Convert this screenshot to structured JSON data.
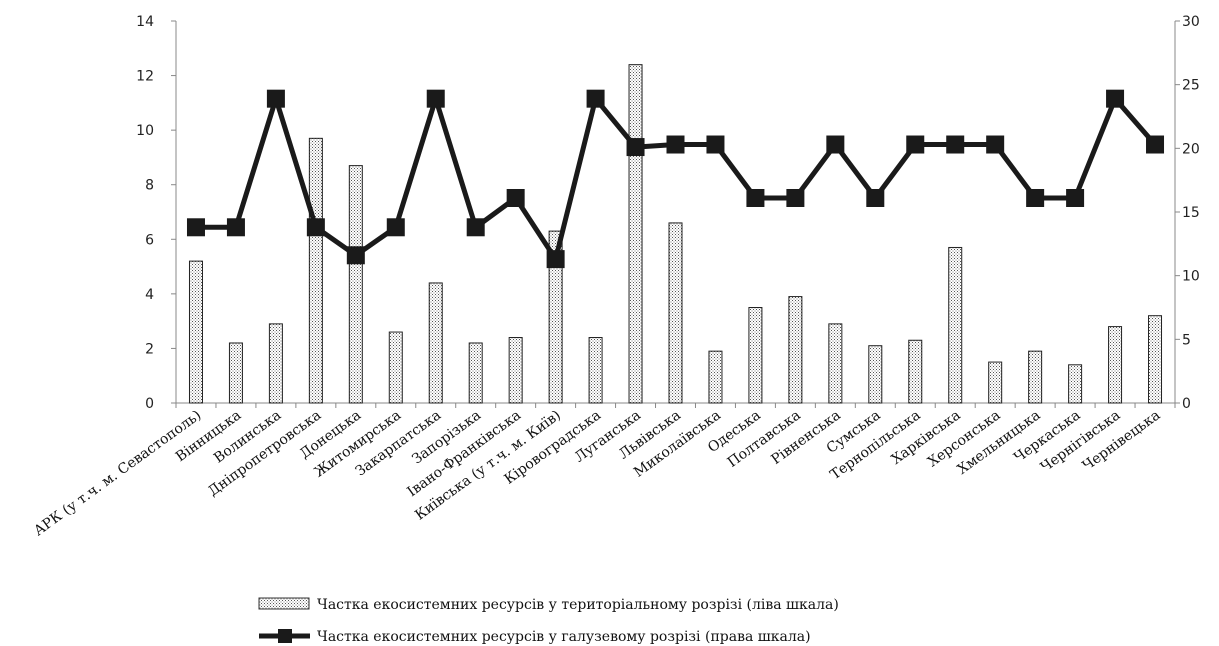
{
  "chart_data": {
    "type": "bar",
    "categories": [
      "АРК (у т.ч. м. Севастополь)",
      "Вінницька",
      "Волинська",
      "Дніпропетровська",
      "Донецька",
      "Житомирська",
      "Закарпатська",
      "Запорізька",
      "Івано-Франківська",
      "Київська (у т.ч. м. Київ)",
      "Кіровоградська",
      "Луганська",
      "Львівська",
      "Миколаївська",
      "Одеська",
      "Полтавська",
      "Рівненська",
      "Сумська",
      "Тернопільська",
      "Харківська",
      "Херсонська",
      "Хмельницька",
      "Черкаська",
      "Чернігівська",
      "Чернівецька"
    ],
    "series": [
      {
        "name": "Частка екосистемних ресурсів у територіальному розрізі (ліва шкала)",
        "type": "bar",
        "axis": "left",
        "values": [
          5.2,
          2.2,
          2.9,
          9.7,
          8.7,
          2.6,
          4.4,
          2.2,
          2.4,
          6.3,
          2.4,
          12.4,
          6.6,
          1.9,
          3.5,
          3.9,
          2.9,
          2.1,
          2.3,
          5.7,
          1.5,
          1.9,
          1.4,
          2.8,
          3.2
        ]
      },
      {
        "name": "Частка екосистемних ресурсів у галузевому розрізі (права шкала)",
        "type": "line",
        "axis": "right",
        "values": [
          13.8,
          13.8,
          23.9,
          13.8,
          11.6,
          13.8,
          23.9,
          13.8,
          16.1,
          11.3,
          23.9,
          20.1,
          20.3,
          20.3,
          16.1,
          16.1,
          20.3,
          16.1,
          20.3,
          20.3,
          20.3,
          16.1,
          16.1,
          23.9,
          20.3
        ]
      }
    ],
    "ylim_left": [
      0,
      14
    ],
    "yticks_left": [
      0,
      2,
      4,
      6,
      8,
      10,
      12,
      14
    ],
    "ylim_right": [
      0,
      30
    ],
    "yticks_right": [
      0,
      5,
      10,
      15,
      20,
      25,
      30
    ],
    "grid": false,
    "legend_position": "bottom"
  }
}
